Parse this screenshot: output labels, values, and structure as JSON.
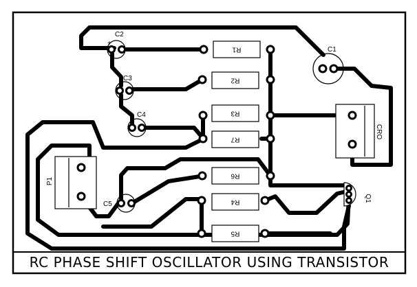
{
  "title": "RC PHASE SHIFT OSCILLATOR USING TRANSISTOR",
  "colors": {
    "trace": "#000000",
    "pad": "#ffffff",
    "board": "#ffffff"
  },
  "labels": {
    "C1": "C1",
    "C2": "C2",
    "C3": "C3",
    "C4": "C4",
    "C5": "C5",
    "R1": "R1",
    "R2": "R2",
    "R3": "R3",
    "R4": "R4",
    "R5": "R5",
    "R6": "R6",
    "R7": "R7",
    "P1": "P1",
    "CRO": "CRO",
    "Q1": "Q1",
    "plus": "+"
  }
}
